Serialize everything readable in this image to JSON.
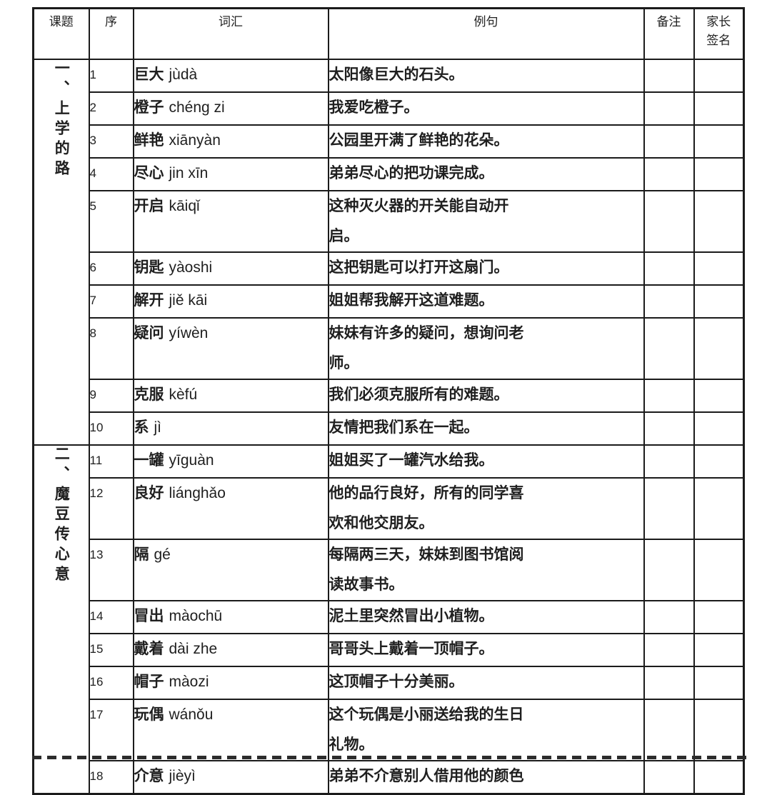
{
  "colors": {
    "background": "#ffffff",
    "border": "#1b1b1b",
    "text": "#1f1f1f"
  },
  "header": {
    "lesson": "课题",
    "num": "序",
    "vocab": "词汇",
    "sentence": "例句",
    "notes": "备注",
    "sign_line1": "家长",
    "sign_line2": "签名"
  },
  "lessons": [
    {
      "title": "一、上学的路",
      "rows": [
        {
          "num": "1",
          "word": "巨大",
          "pinyin": "jùdà",
          "sentence": "太阳像巨大的石头。"
        },
        {
          "num": "2",
          "word": "橙子",
          "pinyin": "chéng zi",
          "sentence": "我爱吃橙子。"
        },
        {
          "num": "3",
          "word": "鲜艳",
          "pinyin": "xiānyàn",
          "sentence": "公园里开满了鲜艳的花朵。"
        },
        {
          "num": "4",
          "word": "尽心",
          "pinyin": "jin xīn",
          "sentence": "弟弟尽心的把功课完成。"
        },
        {
          "num": "5",
          "word": "开启",
          "pinyin": "kāiqǐ",
          "sentence": "这种灭火器的开关能自动开\n启。"
        },
        {
          "num": "6",
          "word": "钥匙",
          "pinyin": "yàoshi",
          "sentence": "这把钥匙可以打开这扇门。"
        },
        {
          "num": "7",
          "word": "解开",
          "pinyin": "jiě kāi",
          "sentence": "姐姐帮我解开这道难题。"
        },
        {
          "num": "8",
          "word": "疑问",
          "pinyin": "yíwèn",
          "sentence": "妹妹有许多的疑问，想询问老\n师。"
        },
        {
          "num": "9",
          "word": "克服",
          "pinyin": "kèfú",
          "sentence": "我们必须克服所有的难题。"
        },
        {
          "num": "10",
          "word": "系",
          "pinyin": "jì",
          "sentence": "友情把我们系在一起。"
        }
      ]
    },
    {
      "title": "二、魔豆传心意",
      "rows": [
        {
          "num": "11",
          "word": "一罐",
          "pinyin": "yīguàn",
          "sentence": "姐姐买了一罐汽水给我。"
        },
        {
          "num": "12",
          "word": "良好",
          "pinyin": "liánghǎo",
          "sentence": "他的品行良好，所有的同学喜\n欢和他交朋友。"
        },
        {
          "num": "13",
          "word": "隔",
          "pinyin": "gé",
          "sentence": "每隔两三天，妹妹到图书馆阅\n读故事书。"
        },
        {
          "num": "14",
          "word": "冒出",
          "pinyin": "màochū",
          "sentence": "泥土里突然冒出小植物。"
        },
        {
          "num": "15",
          "word": "戴着",
          "pinyin": "dài zhe",
          "sentence": "哥哥头上戴着一顶帽子。"
        },
        {
          "num": "16",
          "word": "帽子",
          "pinyin": "màozi",
          "sentence": "这顶帽子十分美丽。"
        },
        {
          "num": "17",
          "word": "玩偶",
          "pinyin": "wánǒu",
          "sentence": "这个玩偶是小丽送给我的生日\n礼物。"
        },
        {
          "num": "18",
          "word": "介意",
          "pinyin": "jièyì",
          "sentence": "弟弟不介意别人借用他的颜色"
        }
      ]
    }
  ]
}
